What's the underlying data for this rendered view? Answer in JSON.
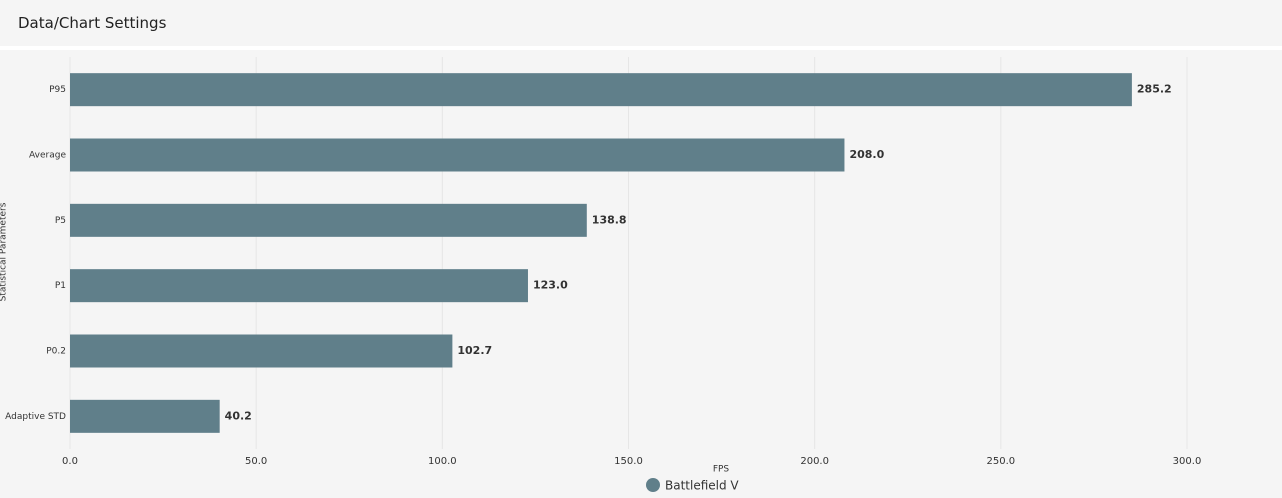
{
  "header": {
    "title": "Data/Chart Settings"
  },
  "chart_data": {
    "type": "hbar",
    "categories": [
      "P95",
      "Average",
      "P5",
      "P1",
      "P0.2",
      "Adaptive STD"
    ],
    "series": [
      {
        "name": "Battlefield V",
        "color": "#607f8a",
        "values": [
          285.2,
          208.0,
          138.8,
          123.0,
          102.7,
          40.2
        ],
        "value_labels": [
          "285.2",
          "208.0",
          "138.8",
          "123.0",
          "102.7",
          "40.2"
        ]
      }
    ],
    "xlabel": "FPS",
    "ylabel": "Statistical Parameters",
    "xlim": [
      0,
      300
    ],
    "xticks": [
      {
        "value": 0,
        "label": "0.0"
      },
      {
        "value": 50,
        "label": "50.0"
      },
      {
        "value": 100,
        "label": "100.0"
      },
      {
        "value": 150,
        "label": "150.0"
      },
      {
        "value": 200,
        "label": "200.0"
      },
      {
        "value": 250,
        "label": "250.0"
      },
      {
        "value": 300,
        "label": "300.0"
      }
    ],
    "grid": true,
    "legend": "bottom"
  }
}
